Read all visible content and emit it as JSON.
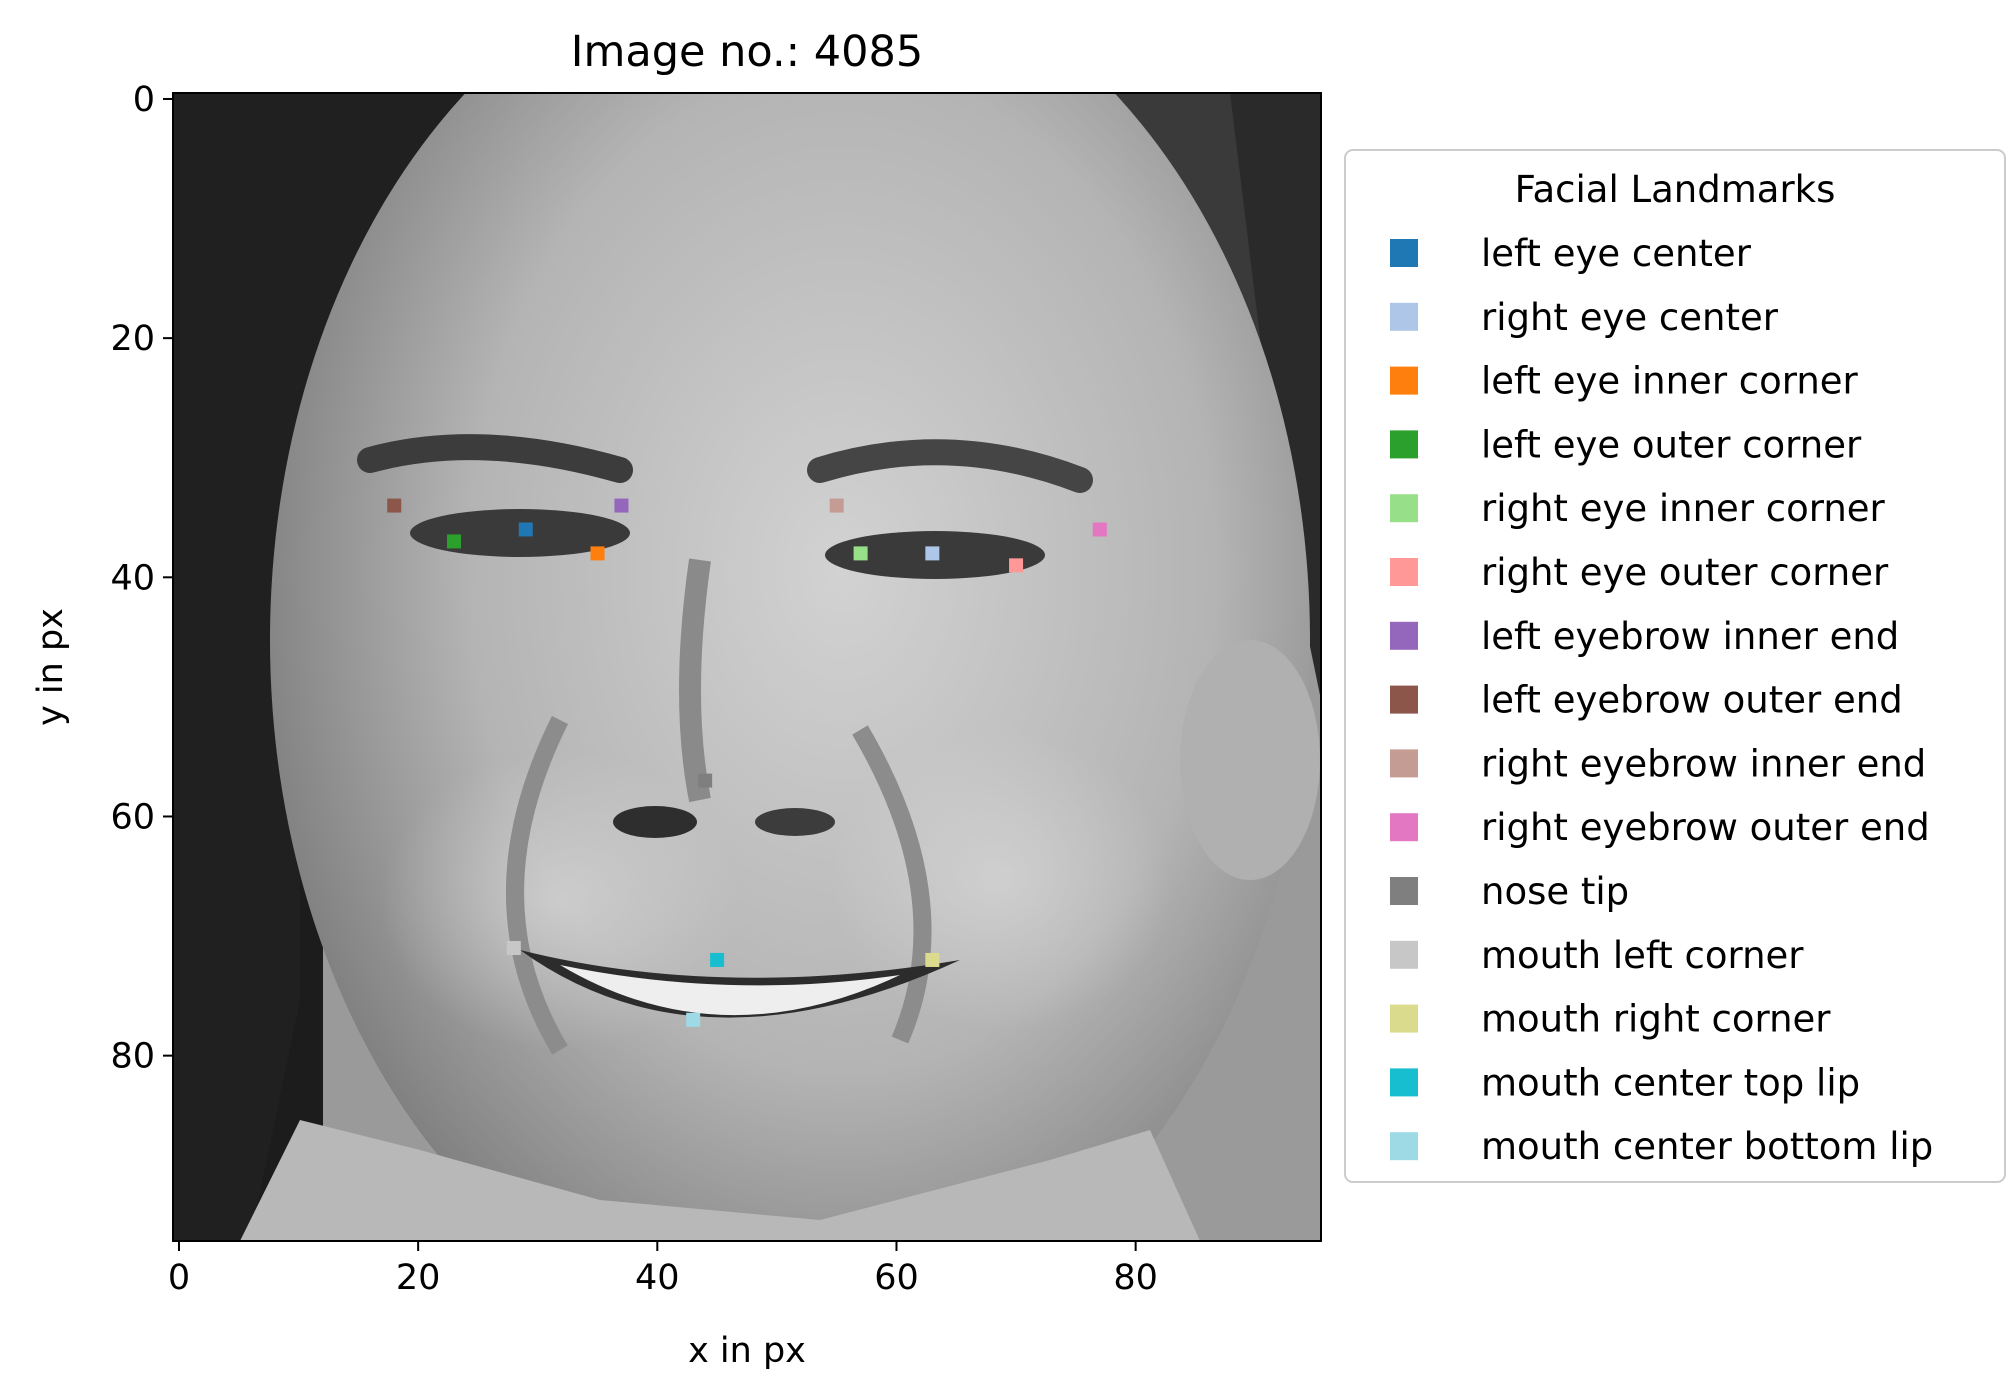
{
  "chart_data": {
    "type": "scatter",
    "title": "Image no.: 4085",
    "xlabel": "x in px",
    "ylabel": "y in px",
    "xlim": [
      -0.5,
      95.5
    ],
    "ylim": [
      95.5,
      -0.5
    ],
    "y_axis_inverted": true,
    "grid": false,
    "xticks": [
      0,
      20,
      40,
      60,
      80
    ],
    "yticks": [
      0,
      20,
      40,
      60,
      80
    ],
    "background_image": "grayscale face photograph, 96x96 px",
    "legend": {
      "title": "Facial Landmarks",
      "placement": "outside right"
    },
    "series": [
      {
        "name": "left eye center",
        "color": "#1f77b4",
        "x": 29,
        "y": 36
      },
      {
        "name": "right eye center",
        "color": "#aec7e8",
        "x": 63,
        "y": 38
      },
      {
        "name": "left eye inner corner",
        "color": "#ff7f0e",
        "x": 35,
        "y": 38
      },
      {
        "name": "left eye outer corner",
        "color": "#2ca02c",
        "x": 23,
        "y": 37
      },
      {
        "name": "right eye inner corner",
        "color": "#98df8a",
        "x": 57,
        "y": 38
      },
      {
        "name": "right eye outer corner",
        "color": "#ff9896",
        "x": 70,
        "y": 39
      },
      {
        "name": "left eyebrow inner end",
        "color": "#9467bd",
        "x": 37,
        "y": 34
      },
      {
        "name": "left eyebrow outer end",
        "color": "#8c564b",
        "x": 18,
        "y": 34
      },
      {
        "name": "right eyebrow inner end",
        "color": "#c49c94",
        "x": 55,
        "y": 34
      },
      {
        "name": "right eyebrow outer end",
        "color": "#e377c2",
        "x": 77,
        "y": 36
      },
      {
        "name": "nose tip",
        "color": "#7f7f7f",
        "x": 44,
        "y": 57
      },
      {
        "name": "mouth left corner",
        "color": "#c7c7c7",
        "x": 28,
        "y": 71
      },
      {
        "name": "mouth right corner",
        "color": "#dbdb8d",
        "x": 63,
        "y": 72
      },
      {
        "name": "mouth center top lip",
        "color": "#17becf",
        "x": 45,
        "y": 72
      },
      {
        "name": "mouth center bottom lip",
        "color": "#9edae5",
        "x": 43,
        "y": 77
      }
    ]
  }
}
